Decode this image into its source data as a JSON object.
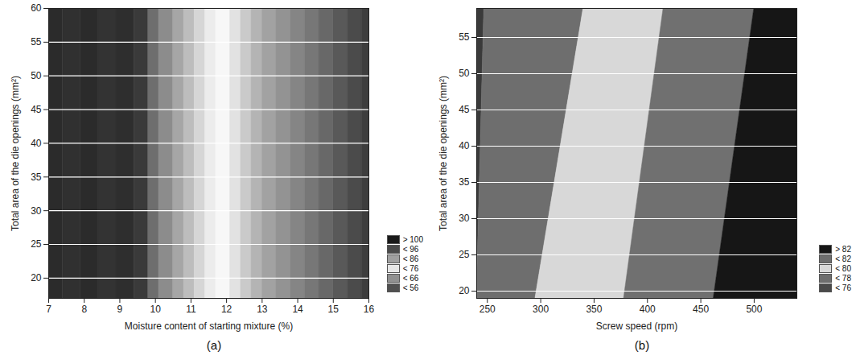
{
  "chart_data": [
    {
      "type": "contour",
      "panel_label": "(a)",
      "x_label": "Moisture content of starting mixture (%)",
      "y_label": "Total area of the die openings (mm²)",
      "xlim": [
        7,
        16
      ],
      "xticks": [
        7,
        8,
        9,
        10,
        11,
        12,
        13,
        14,
        15,
        16
      ],
      "ylim": [
        17,
        60
      ],
      "yticks": [
        20,
        25,
        30,
        35,
        40,
        45,
        50,
        55,
        60
      ],
      "grid": true,
      "bands": [
        {
          "x_bottom": [
            7.0,
            7.4
          ],
          "x_top": [
            7.0,
            7.4
          ],
          "color": "#2b2b2b"
        },
        {
          "x_bottom": [
            7.4,
            7.9
          ],
          "x_top": [
            7.4,
            7.9
          ],
          "color": "#303030"
        },
        {
          "x_bottom": [
            7.9,
            8.4
          ],
          "x_top": [
            7.9,
            8.4
          ],
          "color": "#2b2b2b"
        },
        {
          "x_bottom": [
            8.4,
            8.9
          ],
          "x_top": [
            8.4,
            8.9
          ],
          "color": "#333333"
        },
        {
          "x_bottom": [
            8.9,
            9.4
          ],
          "x_top": [
            8.9,
            9.4
          ],
          "color": "#2e2e2e"
        },
        {
          "x_bottom": [
            9.4,
            9.8
          ],
          "x_top": [
            9.4,
            9.8
          ],
          "color": "#3a3a3a"
        },
        {
          "x_bottom": [
            9.8,
            10.1
          ],
          "x_top": [
            9.8,
            10.1
          ],
          "color": "#6e6e6e"
        },
        {
          "x_bottom": [
            10.1,
            10.5
          ],
          "x_top": [
            10.1,
            10.5
          ],
          "color": "#8c8c8c"
        },
        {
          "x_bottom": [
            10.5,
            10.8
          ],
          "x_top": [
            10.5,
            10.8
          ],
          "color": "#a6a6a6"
        },
        {
          "x_bottom": [
            10.8,
            11.1
          ],
          "x_top": [
            10.8,
            11.1
          ],
          "color": "#bdbdbd"
        },
        {
          "x_bottom": [
            11.1,
            11.4
          ],
          "x_top": [
            11.1,
            11.4
          ],
          "color": "#d6d6d6"
        },
        {
          "x_bottom": [
            11.4,
            11.7
          ],
          "x_top": [
            11.4,
            11.7
          ],
          "color": "#ececec"
        },
        {
          "x_bottom": [
            11.7,
            12.1
          ],
          "x_top": [
            11.7,
            12.1
          ],
          "color": "#f7f7f7"
        },
        {
          "x_bottom": [
            12.1,
            12.4
          ],
          "x_top": [
            12.1,
            12.4
          ],
          "color": "#e2e2e2"
        },
        {
          "x_bottom": [
            12.4,
            12.7
          ],
          "x_top": [
            12.4,
            12.7
          ],
          "color": "#cacaca"
        },
        {
          "x_bottom": [
            12.7,
            13.0
          ],
          "x_top": [
            12.7,
            13.0
          ],
          "color": "#b4b4b4"
        },
        {
          "x_bottom": [
            13.0,
            13.4
          ],
          "x_top": [
            13.0,
            13.4
          ],
          "color": "#a2a2a2"
        },
        {
          "x_bottom": [
            13.4,
            13.8
          ],
          "x_top": [
            13.4,
            13.8
          ],
          "color": "#939393"
        },
        {
          "x_bottom": [
            13.8,
            14.2
          ],
          "x_top": [
            13.8,
            14.2
          ],
          "color": "#858585"
        },
        {
          "x_bottom": [
            14.2,
            14.6
          ],
          "x_top": [
            14.2,
            14.6
          ],
          "color": "#777777"
        },
        {
          "x_bottom": [
            14.6,
            15.0
          ],
          "x_top": [
            14.6,
            15.0
          ],
          "color": "#686868"
        },
        {
          "x_bottom": [
            15.0,
            15.4
          ],
          "x_top": [
            15.0,
            15.4
          ],
          "color": "#595959"
        },
        {
          "x_bottom": [
            15.4,
            15.8
          ],
          "x_top": [
            15.4,
            15.8
          ],
          "color": "#4b4b4b"
        },
        {
          "x_bottom": [
            15.8,
            16.0
          ],
          "x_top": [
            15.8,
            16.0
          ],
          "color": "#3d3d3d"
        }
      ],
      "color_key": [
        {
          "label": "> 100",
          "color": "#1a1a1a"
        },
        {
          "label": "< 96",
          "color": "#4a4a4a"
        },
        {
          "label": "< 86",
          "color": "#a0a0a0"
        },
        {
          "label": "< 76",
          "color": "#e6e6e6"
        },
        {
          "label": "< 66",
          "color": "#909090"
        },
        {
          "label": "< 56",
          "color": "#505050"
        }
      ]
    },
    {
      "type": "contour",
      "panel_label": "(b)",
      "x_label": "Screw speed (rpm)",
      "y_label": "Total area of the die openings (mm²)",
      "xlim": [
        240,
        540
      ],
      "xticks": [
        250,
        300,
        350,
        400,
        450,
        500
      ],
      "ylim": [
        19,
        59
      ],
      "yticks": [
        20,
        25,
        30,
        35,
        40,
        45,
        50,
        55
      ],
      "grid": true,
      "bands": [
        {
          "x_bottom": [
            240,
            240
          ],
          "x_top": [
            240,
            247
          ],
          "color": "#3a3a3a"
        },
        {
          "x_bottom": [
            240,
            295
          ],
          "x_top": [
            247,
            340
          ],
          "color": "#6e6e6e"
        },
        {
          "x_bottom": [
            295,
            378
          ],
          "x_top": [
            340,
            415
          ],
          "color": "#d8d8d8"
        },
        {
          "x_bottom": [
            378,
            462
          ],
          "x_top": [
            415,
            500
          ],
          "color": "#707070"
        },
        {
          "x_bottom": [
            462,
            540
          ],
          "x_top": [
            500,
            540
          ],
          "color": "#161616"
        }
      ],
      "color_key": [
        {
          "label": "> 82",
          "color": "#161616"
        },
        {
          "label": "< 82",
          "color": "#6e6e6e"
        },
        {
          "label": "< 80",
          "color": "#d8d8d8"
        },
        {
          "label": "< 78",
          "color": "#6e6e6e"
        },
        {
          "label": "< 76",
          "color": "#4a4a4a"
        }
      ]
    }
  ]
}
